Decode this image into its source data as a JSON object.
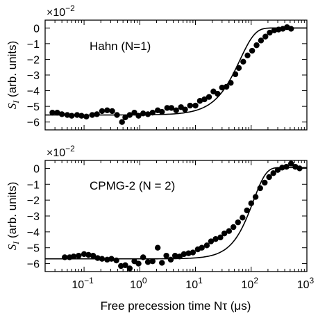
{
  "figure": {
    "xlabel": "Free precession time Nτ (μs)",
    "ylabel_main": "S",
    "ylabel_sub": "I",
    "ylabel_rest": " (arb. units)",
    "multiplier_base": "×10",
    "multiplier_exp": "−2"
  },
  "chart_data": [
    {
      "type": "scatter",
      "title": "",
      "panel_label": "Hahn (N=1)",
      "xlabel": "Free precession time Nτ (μs)",
      "ylabel": "S_I (arb. units)",
      "x_scale": "log",
      "xlim": [
        0.02,
        1000
      ],
      "ylim": [
        -6.5,
        0.5
      ],
      "yticks": [
        0,
        -1,
        -2,
        -3,
        -4,
        -5,
        -6
      ],
      "ytick_labels": [
        "0",
        "−1",
        "−2",
        "−3",
        "−4",
        "−5",
        "−6"
      ],
      "y_multiplier": "×10^-2",
      "grid": false,
      "series": [
        {
          "kind": "points",
          "x": [
            0.027,
            0.033,
            0.04,
            0.05,
            0.06,
            0.075,
            0.09,
            0.11,
            0.14,
            0.17,
            0.21,
            0.26,
            0.32,
            0.39,
            0.48,
            0.55,
            0.66,
            0.8,
            0.95,
            1.15,
            1.4,
            1.7,
            2.1,
            2.5,
            3.1,
            3.7,
            4.5,
            5.5,
            6.5,
            8.0,
            10,
            12,
            14.5,
            17.5,
            21,
            25,
            30,
            36,
            43,
            52,
            60,
            72,
            86,
            104,
            125,
            150,
            180,
            215,
            260,
            310,
            370,
            440,
            520
          ],
          "y": [
            -5.4,
            -5.4,
            -5.5,
            -5.55,
            -5.6,
            -5.55,
            -5.6,
            -5.65,
            -5.55,
            -5.5,
            -5.3,
            -5.25,
            -5.3,
            -5.55,
            -6.0,
            -5.7,
            -5.55,
            -5.4,
            -5.6,
            -5.45,
            -5.5,
            -5.4,
            -5.25,
            -5.35,
            -5.1,
            -5.1,
            -5.25,
            -5.05,
            -5.2,
            -4.95,
            -4.95,
            -4.65,
            -4.55,
            -4.4,
            -4.05,
            -4.2,
            -3.8,
            -3.75,
            -3.5,
            -2.95,
            -2.55,
            -2.15,
            -1.75,
            -1.45,
            -1.1,
            -0.8,
            -0.55,
            -0.3,
            -0.15,
            -0.1,
            -0.05,
            0.05,
            -0.05
          ]
        },
        {
          "kind": "fit",
          "y_min": -5.55,
          "y_max": 0.0,
          "t_half_us": 50,
          "exponent": 1.6
        }
      ]
    },
    {
      "type": "scatter",
      "title": "",
      "panel_label": "CPMG-2 (N = 2)",
      "xlabel": "Free precession time Nτ (μs)",
      "ylabel": "S_I (arb. units)",
      "x_scale": "log",
      "xlim": [
        0.02,
        1000
      ],
      "ylim": [
        -6.5,
        0.5
      ],
      "yticks": [
        0,
        -1,
        -2,
        -3,
        -4,
        -5,
        -6
      ],
      "ytick_labels": [
        "0",
        "−1",
        "−2",
        "−3",
        "−4",
        "−5",
        "−6"
      ],
      "xticks": [
        0.1,
        1,
        10,
        100,
        1000
      ],
      "xtick_labels": [
        [
          "10",
          "−1"
        ],
        [
          "10",
          "0"
        ],
        [
          "10",
          "1"
        ],
        [
          "10",
          "2"
        ],
        [
          "10",
          "3"
        ]
      ],
      "y_multiplier": "×10^-2",
      "grid": false,
      "series": [
        {
          "kind": "points",
          "x": [
            0.045,
            0.055,
            0.065,
            0.08,
            0.1,
            0.12,
            0.145,
            0.175,
            0.21,
            0.26,
            0.31,
            0.38,
            0.46,
            0.55,
            0.66,
            0.8,
            0.95,
            1.15,
            1.4,
            1.7,
            2.1,
            2.5,
            3.0,
            3.6,
            4.3,
            5.2,
            6.2,
            7.5,
            9.0,
            11,
            13,
            16,
            19,
            23,
            28,
            33,
            40,
            48,
            58,
            70,
            84,
            100,
            120,
            145,
            175,
            210,
            250,
            300,
            360,
            430,
            520,
            620,
            740
          ],
          "y": [
            -5.6,
            -5.6,
            -5.55,
            -5.5,
            -5.4,
            -5.45,
            -5.5,
            -5.65,
            -5.7,
            -5.75,
            -5.7,
            -5.8,
            -6.15,
            -6.1,
            -6.3,
            -5.85,
            -6.0,
            -5.6,
            -5.9,
            -5.85,
            -5.0,
            -5.95,
            -5.5,
            -5.75,
            -5.5,
            -5.55,
            -5.4,
            -5.35,
            -5.3,
            -5.1,
            -5.0,
            -4.85,
            -4.6,
            -4.45,
            -4.35,
            -4.1,
            -3.95,
            -3.7,
            -3.4,
            -3.1,
            -2.65,
            -2.2,
            -1.8,
            -1.25,
            -0.9,
            -0.55,
            -0.3,
            -0.1,
            0.05,
            0.1,
            0.3,
            0.1,
            0.0
          ]
        },
        {
          "kind": "fit",
          "y_min": -5.7,
          "y_max": 0.05,
          "t_half_us": 90,
          "exponent": 1.9
        }
      ]
    }
  ]
}
